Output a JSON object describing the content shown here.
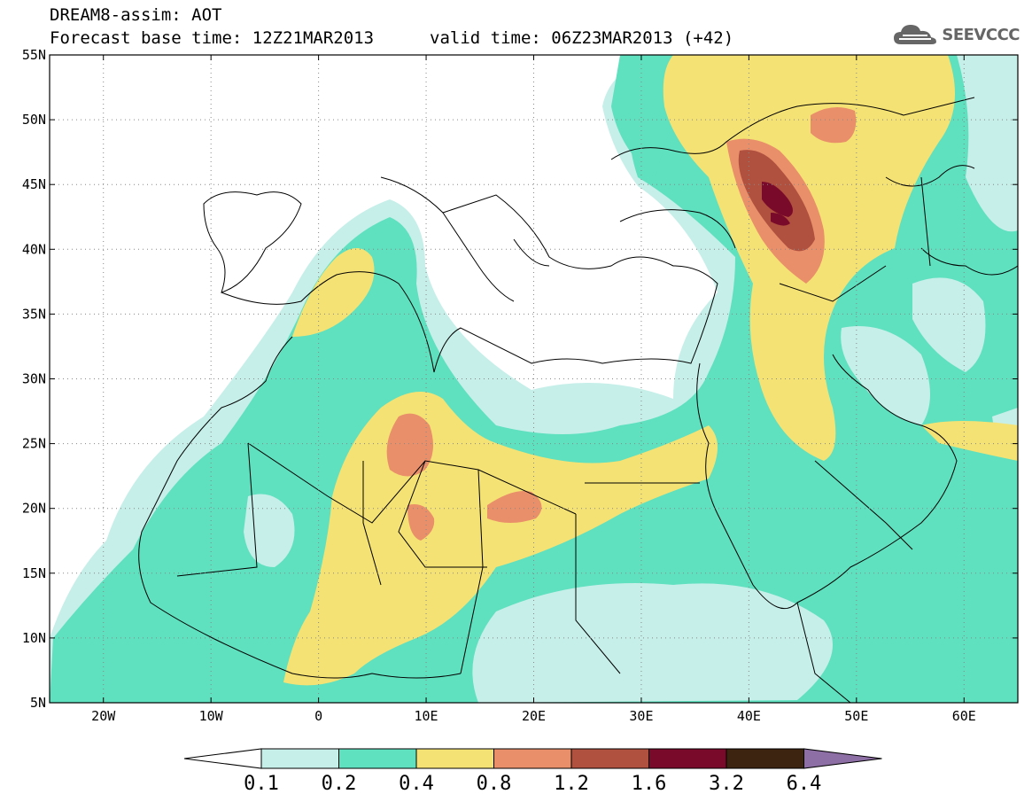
{
  "header": {
    "title": "DREAM8-assim: AOT",
    "base_time": "Forecast base time: 12Z21MAR2013",
    "valid_time": "valid time: 06Z23MAR2013 (+42)"
  },
  "logo": {
    "text": "SEEVCCC",
    "icon": "cloud-logo-icon"
  },
  "map": {
    "lat_labels": [
      "55N",
      "50N",
      "45N",
      "40N",
      "35N",
      "30N",
      "25N",
      "20N",
      "15N",
      "10N",
      "5N"
    ],
    "lon_labels": [
      "20W",
      "10W",
      "0",
      "10E",
      "20E",
      "30E",
      "40E",
      "50E",
      "60E"
    ],
    "lat_range": [
      5,
      55
    ],
    "lon_range": [
      -25,
      65
    ]
  },
  "colorbar": {
    "labels": [
      "0.1",
      "0.2",
      "0.4",
      "0.8",
      "1.2",
      "1.6",
      "3.2",
      "6.4"
    ],
    "colors": [
      "#ffffff",
      "#c6efe9",
      "#5fe0bf",
      "#f5e274",
      "#e98f6a",
      "#b0503f",
      "#7a0a2a",
      "#3d2410",
      "#8e6fa5"
    ]
  },
  "colors": {
    "c01": "#c6efe9",
    "c02": "#5fe0bf",
    "c04": "#f5e274",
    "c08": "#e98f6a",
    "c12": "#b0503f",
    "c16": "#7a0a2a"
  }
}
